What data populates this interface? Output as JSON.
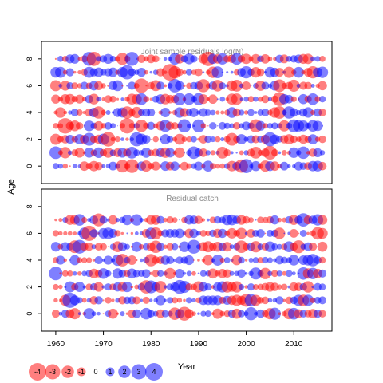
{
  "chart_data": {
    "type": "bubble",
    "ylabel": "Age",
    "xlabel": "Year",
    "colors": {
      "positive": "#0000ff",
      "negative": "#ff0000"
    },
    "x_ticks": [
      1960,
      1970,
      1980,
      1990,
      2000,
      2010
    ],
    "y_ticks": [
      0,
      2,
      4,
      6,
      8
    ],
    "xlim": [
      1957,
      2018
    ],
    "ylim": [
      -1.3,
      9.3
    ],
    "panels": [
      {
        "title": "Joint sample residuals log(N)",
        "years": [
          1960,
          2016
        ],
        "ages": [
          0,
          8
        ],
        "overall_max_residual": 4.2,
        "typical_residual_range": [
          -3,
          3
        ]
      },
      {
        "title": "Residual catch",
        "years": [
          1960,
          2016
        ],
        "ages": [
          0,
          7
        ],
        "overall_max_residual": 3.0,
        "typical_residual_range": [
          -2.5,
          2.5
        ]
      }
    ],
    "legend": {
      "values": [
        "-4",
        "-3",
        "-2",
        "-1",
        "0",
        "1",
        "2",
        "3",
        "4"
      ],
      "placement": "bottom-left"
    }
  }
}
